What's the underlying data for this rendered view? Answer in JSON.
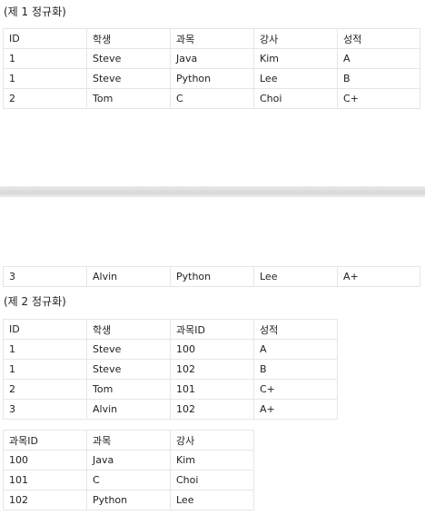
{
  "first_normal_form": {
    "heading": "(제 1 정규화)",
    "header": [
      "ID",
      "학생",
      "과목",
      "강사",
      "성적"
    ],
    "rows_page1": [
      [
        "1",
        "Steve",
        "Java",
        "Kim",
        "A"
      ],
      [
        "1",
        "Steve",
        "Python",
        "Lee",
        "B"
      ],
      [
        "2",
        "Tom",
        "C",
        "Choi",
        "C+"
      ]
    ],
    "rows_page2": [
      [
        "3",
        "Alvin",
        "Python",
        "Lee",
        "A+"
      ]
    ]
  },
  "second_normal_form": {
    "heading": "(제 2 정규화)",
    "grades_table": {
      "header": [
        "ID",
        "학생",
        "과목ID",
        "성적"
      ],
      "rows": [
        [
          "1",
          "Steve",
          "100",
          "A"
        ],
        [
          "1",
          "Steve",
          "102",
          "B"
        ],
        [
          "2",
          "Tom",
          "101",
          "C+"
        ],
        [
          "3",
          "Alvin",
          "102",
          "A+"
        ]
      ]
    },
    "course_table": {
      "header": [
        "과목ID",
        "과목",
        "강사"
      ],
      "rows": [
        [
          "100",
          "Java",
          "Kim"
        ],
        [
          "101",
          "C",
          "Choi"
        ],
        [
          "102",
          "Python",
          "Lee"
        ]
      ]
    }
  }
}
